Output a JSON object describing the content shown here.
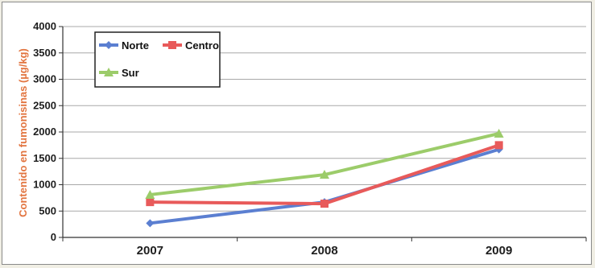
{
  "chart_data": {
    "type": "line",
    "title": "",
    "xlabel": "",
    "ylabel": "Contenido en fumonisinas (µg/kg)",
    "categories": [
      "2007",
      "2008",
      "2009"
    ],
    "ylim": [
      0,
      4000
    ],
    "ytick_step": 500,
    "yticks": [
      "0",
      "500",
      "1000",
      "1500",
      "2000",
      "2500",
      "3000",
      "3500",
      "4000"
    ],
    "grid": true,
    "legend_position": "top-left",
    "series": [
      {
        "name": "Norte",
        "values": [
          270,
          670,
          1670
        ],
        "color": "#5b7fd1",
        "marker": "diamond"
      },
      {
        "name": "Centro",
        "values": [
          670,
          640,
          1750
        ],
        "color": "#e85a5a",
        "marker": "square"
      },
      {
        "name": "Sur",
        "values": [
          810,
          1190,
          1970
        ],
        "color": "#9ccc6a",
        "marker": "triangle"
      }
    ]
  }
}
